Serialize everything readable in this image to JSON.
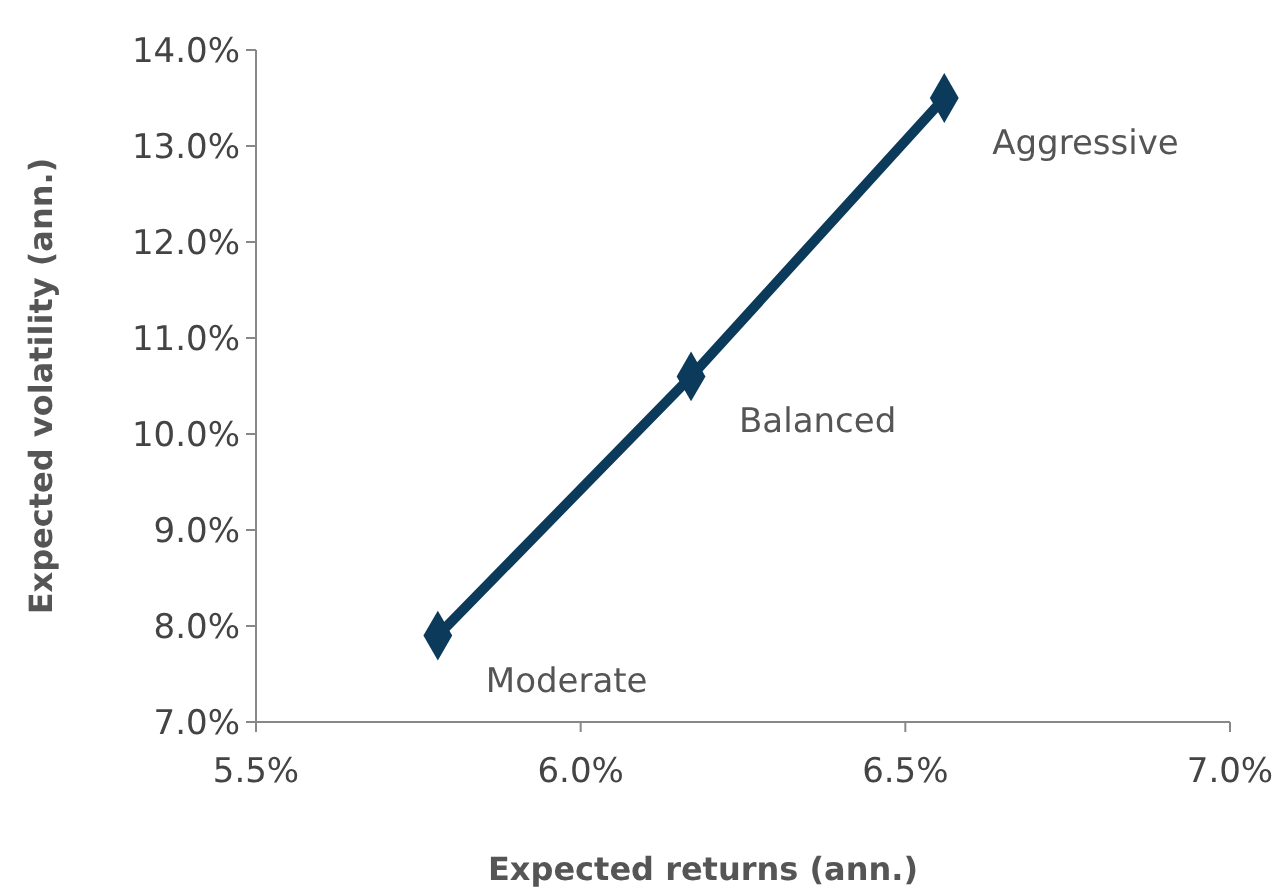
{
  "chart_data": {
    "type": "line",
    "xlabel": "Expected returns (ann.)",
    "ylabel": "Expected volatility (ann.)",
    "x": [
      5.78,
      6.17,
      6.56
    ],
    "series": [
      {
        "color": "#0b3a5b",
        "values": [
          7.9,
          10.6,
          13.5
        ]
      }
    ],
    "marker": "diamond",
    "line_style": "solid",
    "grid": false,
    "xlim": [
      5.5,
      7.0
    ],
    "xticks": [
      {
        "value": 5.5,
        "label": "5.5%"
      },
      {
        "value": 6.0,
        "label": "6.0%"
      },
      {
        "value": 6.5,
        "label": "6.5%"
      },
      {
        "value": 7.0,
        "label": "7.0%"
      }
    ],
    "ylim": [
      7.0,
      14.0
    ],
    "yticks": [
      {
        "value": 7,
        "label": "7.0%"
      },
      {
        "value": 8,
        "label": "8.0%"
      },
      {
        "value": 9,
        "label": "9.0%"
      },
      {
        "value": 10,
        "label": "10.0%"
      },
      {
        "value": 11,
        "label": "11.0%"
      },
      {
        "value": 12,
        "label": "12.0%"
      },
      {
        "value": 13,
        "label": "13.0%"
      },
      {
        "value": 14,
        "label": "14.0%"
      }
    ],
    "annotations": [
      {
        "text": "Moderate",
        "x": 5.78,
        "y": 7.9
      },
      {
        "text": "Balanced",
        "x": 6.17,
        "y": 10.6
      },
      {
        "text": "Aggressive",
        "x": 6.56,
        "y": 13.5
      }
    ]
  }
}
